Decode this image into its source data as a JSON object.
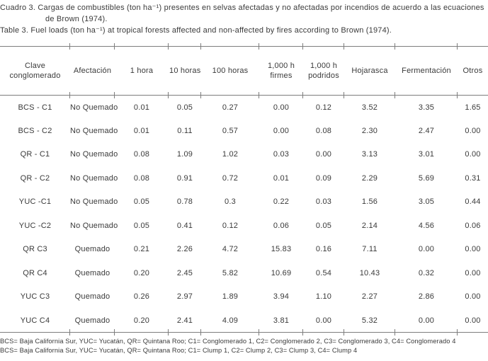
{
  "colors": {
    "text_color": "#3a3a3a",
    "rule_color": "#7d7d7d"
  },
  "caption": {
    "es_line1": "Cuadro 3. Cargas de combustibles (ton ha⁻¹) presentes en selvas afectadas y no afectadas por incendios de acuerdo a las ecuaciones",
    "es_line2": "de Brown (1974).",
    "en": "Table 3. Fuel loads (ton ha⁻¹) at tropical forests affected and non-affected by fires according to Brown (1974)."
  },
  "chart_data": {
    "type": "table",
    "columns": [
      "Clave conglomerado",
      "Afectación",
      "1 hora",
      "10 horas",
      "100 horas",
      "1,000 h firmes",
      "1,000 h podridos",
      "Hojarasca",
      "Fermentación",
      "Otros"
    ],
    "rows": [
      [
        "BCS - C1",
        "No Quemado",
        "0.01",
        "0.05",
        "0.27",
        "0.00",
        "0.12",
        "3.52",
        "3.35",
        "1.65"
      ],
      [
        "BCS - C2",
        "No Quemado",
        "0.01",
        "0.11",
        "0.57",
        "0.00",
        "0.08",
        "2.30",
        "2.47",
        "0.00"
      ],
      [
        "QR - C1",
        "No Quemado",
        "0.08",
        "1.09",
        "1.02",
        "0.03",
        "0.00",
        "3.13",
        "3.01",
        "0.00"
      ],
      [
        "QR - C2",
        "No Quemado",
        "0.08",
        "0.91",
        "0.72",
        "0.01",
        "0.09",
        "2.29",
        "5.69",
        "0.31"
      ],
      [
        "YUC -C1",
        "No Quemado",
        "0.05",
        "0.78",
        "0.3",
        "0.22",
        "0.03",
        "1.56",
        "3.05",
        "0.44"
      ],
      [
        "YUC -C2",
        "No Quemado",
        "0.05",
        "0.41",
        "0.12",
        "0.06",
        "0.05",
        "2.14",
        "4.56",
        "0.06"
      ],
      [
        "QR C3",
        "Quemado",
        "0.21",
        "2.26",
        "4.72",
        "15.83",
        "0.16",
        "7.11",
        "0.00",
        "0.00"
      ],
      [
        "QR C4",
        "Quemado",
        "0.20",
        "2.45",
        "5.82",
        "10.69",
        "0.54",
        "10.43",
        "0.32",
        "0.00"
      ],
      [
        "YUC C3",
        "Quemado",
        "0.26",
        "2.97",
        "1.89",
        "3.94",
        "1.10",
        "2.27",
        "2.86",
        "0.00"
      ],
      [
        "YUC C4",
        "Quemado",
        "0.20",
        "2.41",
        "4.09",
        "3.81",
        "0.00",
        "5.32",
        "0.00",
        "0.00"
      ]
    ]
  },
  "footnotes": {
    "es": "BCS= Baja California Sur, YUC= Yucatán, QR= Quintana Roo; C1= Conglomerado 1, C2= Conglomerado 2, C3= Conglomerado 3, C4= Conglomerado 4",
    "en": "BCS= Baja California Sur, YUC= Yucatán, QR= Quintana Roo; C1= Clump 1, C2= Clump 2, C3= Clump 3, C4= Clump 4"
  }
}
